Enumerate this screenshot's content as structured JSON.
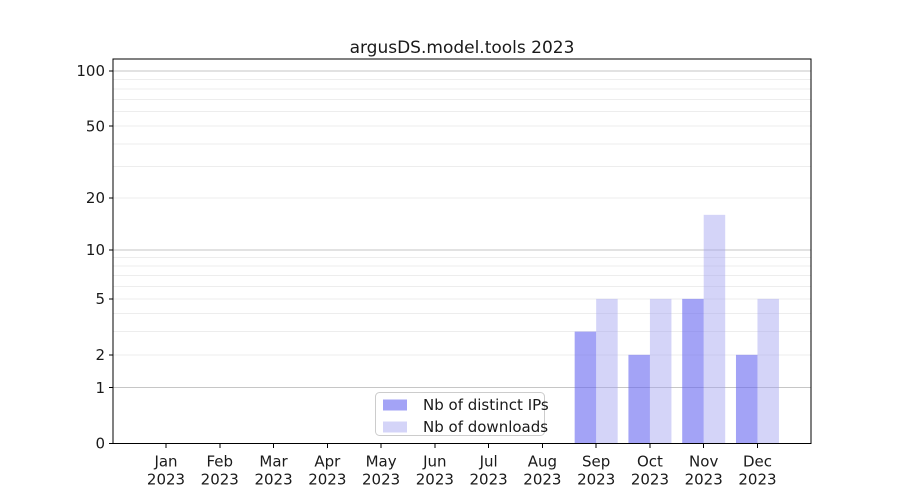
{
  "chart_data": {
    "type": "bar",
    "title": "argusDS.model.tools 2023",
    "categories": [
      "Jan\n2023",
      "Feb\n2023",
      "Mar\n2023",
      "Apr\n2023",
      "May\n2023",
      "Jun\n2023",
      "Jul\n2023",
      "Aug\n2023",
      "Sep\n2023",
      "Oct\n2023",
      "Nov\n2023",
      "Dec\n2023"
    ],
    "series": [
      {
        "name": "Nb of distinct IPs",
        "color": "#6666f0",
        "fill_opacity": 0.6,
        "values": [
          0,
          0,
          0,
          0,
          0,
          0,
          0,
          0,
          3,
          2,
          5,
          2
        ]
      },
      {
        "name": "Nb of downloads",
        "color": "#9f9ff0",
        "fill_opacity": 0.45,
        "values": [
          0,
          0,
          0,
          0,
          0,
          0,
          0,
          0,
          5,
          5,
          16,
          5
        ]
      }
    ],
    "yscale": "log10(1+x)",
    "yticks": [
      0,
      1,
      2,
      5,
      10,
      20,
      50,
      100
    ],
    "ylim": [
      0,
      116
    ],
    "grid": {
      "major_ticks": [
        1,
        10,
        100
      ],
      "minor_ticks": [
        2,
        3,
        4,
        5,
        6,
        7,
        8,
        9,
        20,
        30,
        40,
        50,
        60,
        70,
        80,
        90
      ],
      "major_color": "#c6c6c6",
      "minor_color": "#ededed"
    },
    "legend": {
      "position": "lower center"
    },
    "axis_color": "#000000",
    "text_color": "#1a1a1a",
    "background_color": "#ffffff"
  }
}
